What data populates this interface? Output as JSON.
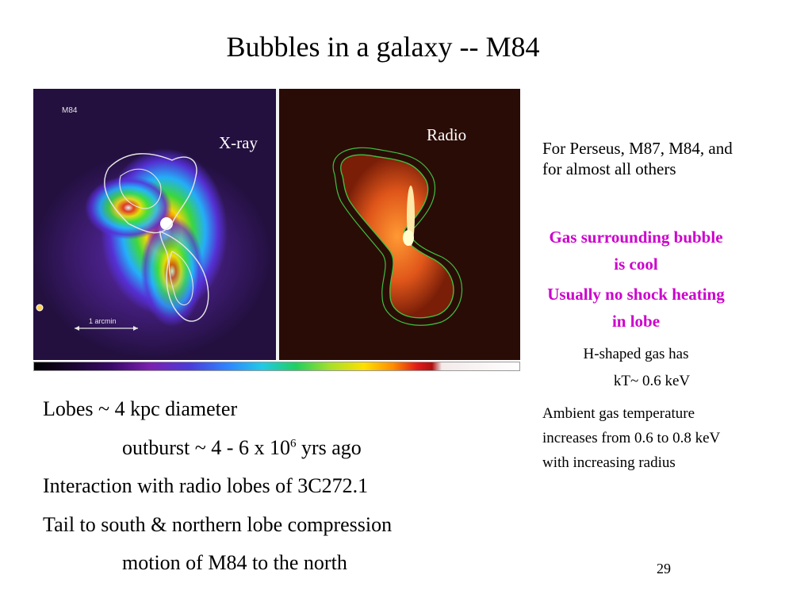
{
  "slide": {
    "title": "Bubbles in a galaxy -- M84",
    "page_number": "29"
  },
  "figure": {
    "xray_label": "X-ray",
    "radio_label": "Radio",
    "object_tag": "M84",
    "scale_bar_text": "1  arcmin",
    "colors": {
      "xray_background": "#23103f",
      "radio_background": "#2a0c06",
      "contour_white": "#e8e8e8",
      "contour_green": "#3fbf3f"
    }
  },
  "sidebar": {
    "intro": "For Perseus, M87, M84, and for almost all others",
    "highlight_1": "Gas surrounding bubble is cool",
    "highlight_2": "Usually no shock heating in lobe",
    "h_shaped_1": "H-shaped gas has",
    "h_shaped_2": "kT~ 0.6 keV",
    "ambient": "Ambient gas temperature increases from 0.6 to 0.8 keV with increasing radius",
    "highlight_color": "#cc00cc"
  },
  "bullets": {
    "line1": "Lobes ~ 4 kpc diameter",
    "line2_pre": "outburst ~ 4 - 6 x 10",
    "line2_exp": "6",
    "line2_post": " yrs ago",
    "line3": "Interaction with radio lobes of 3C272.1",
    "line4": "Tail to south & northern lobe compression",
    "line5": "motion of M84 to the north"
  }
}
